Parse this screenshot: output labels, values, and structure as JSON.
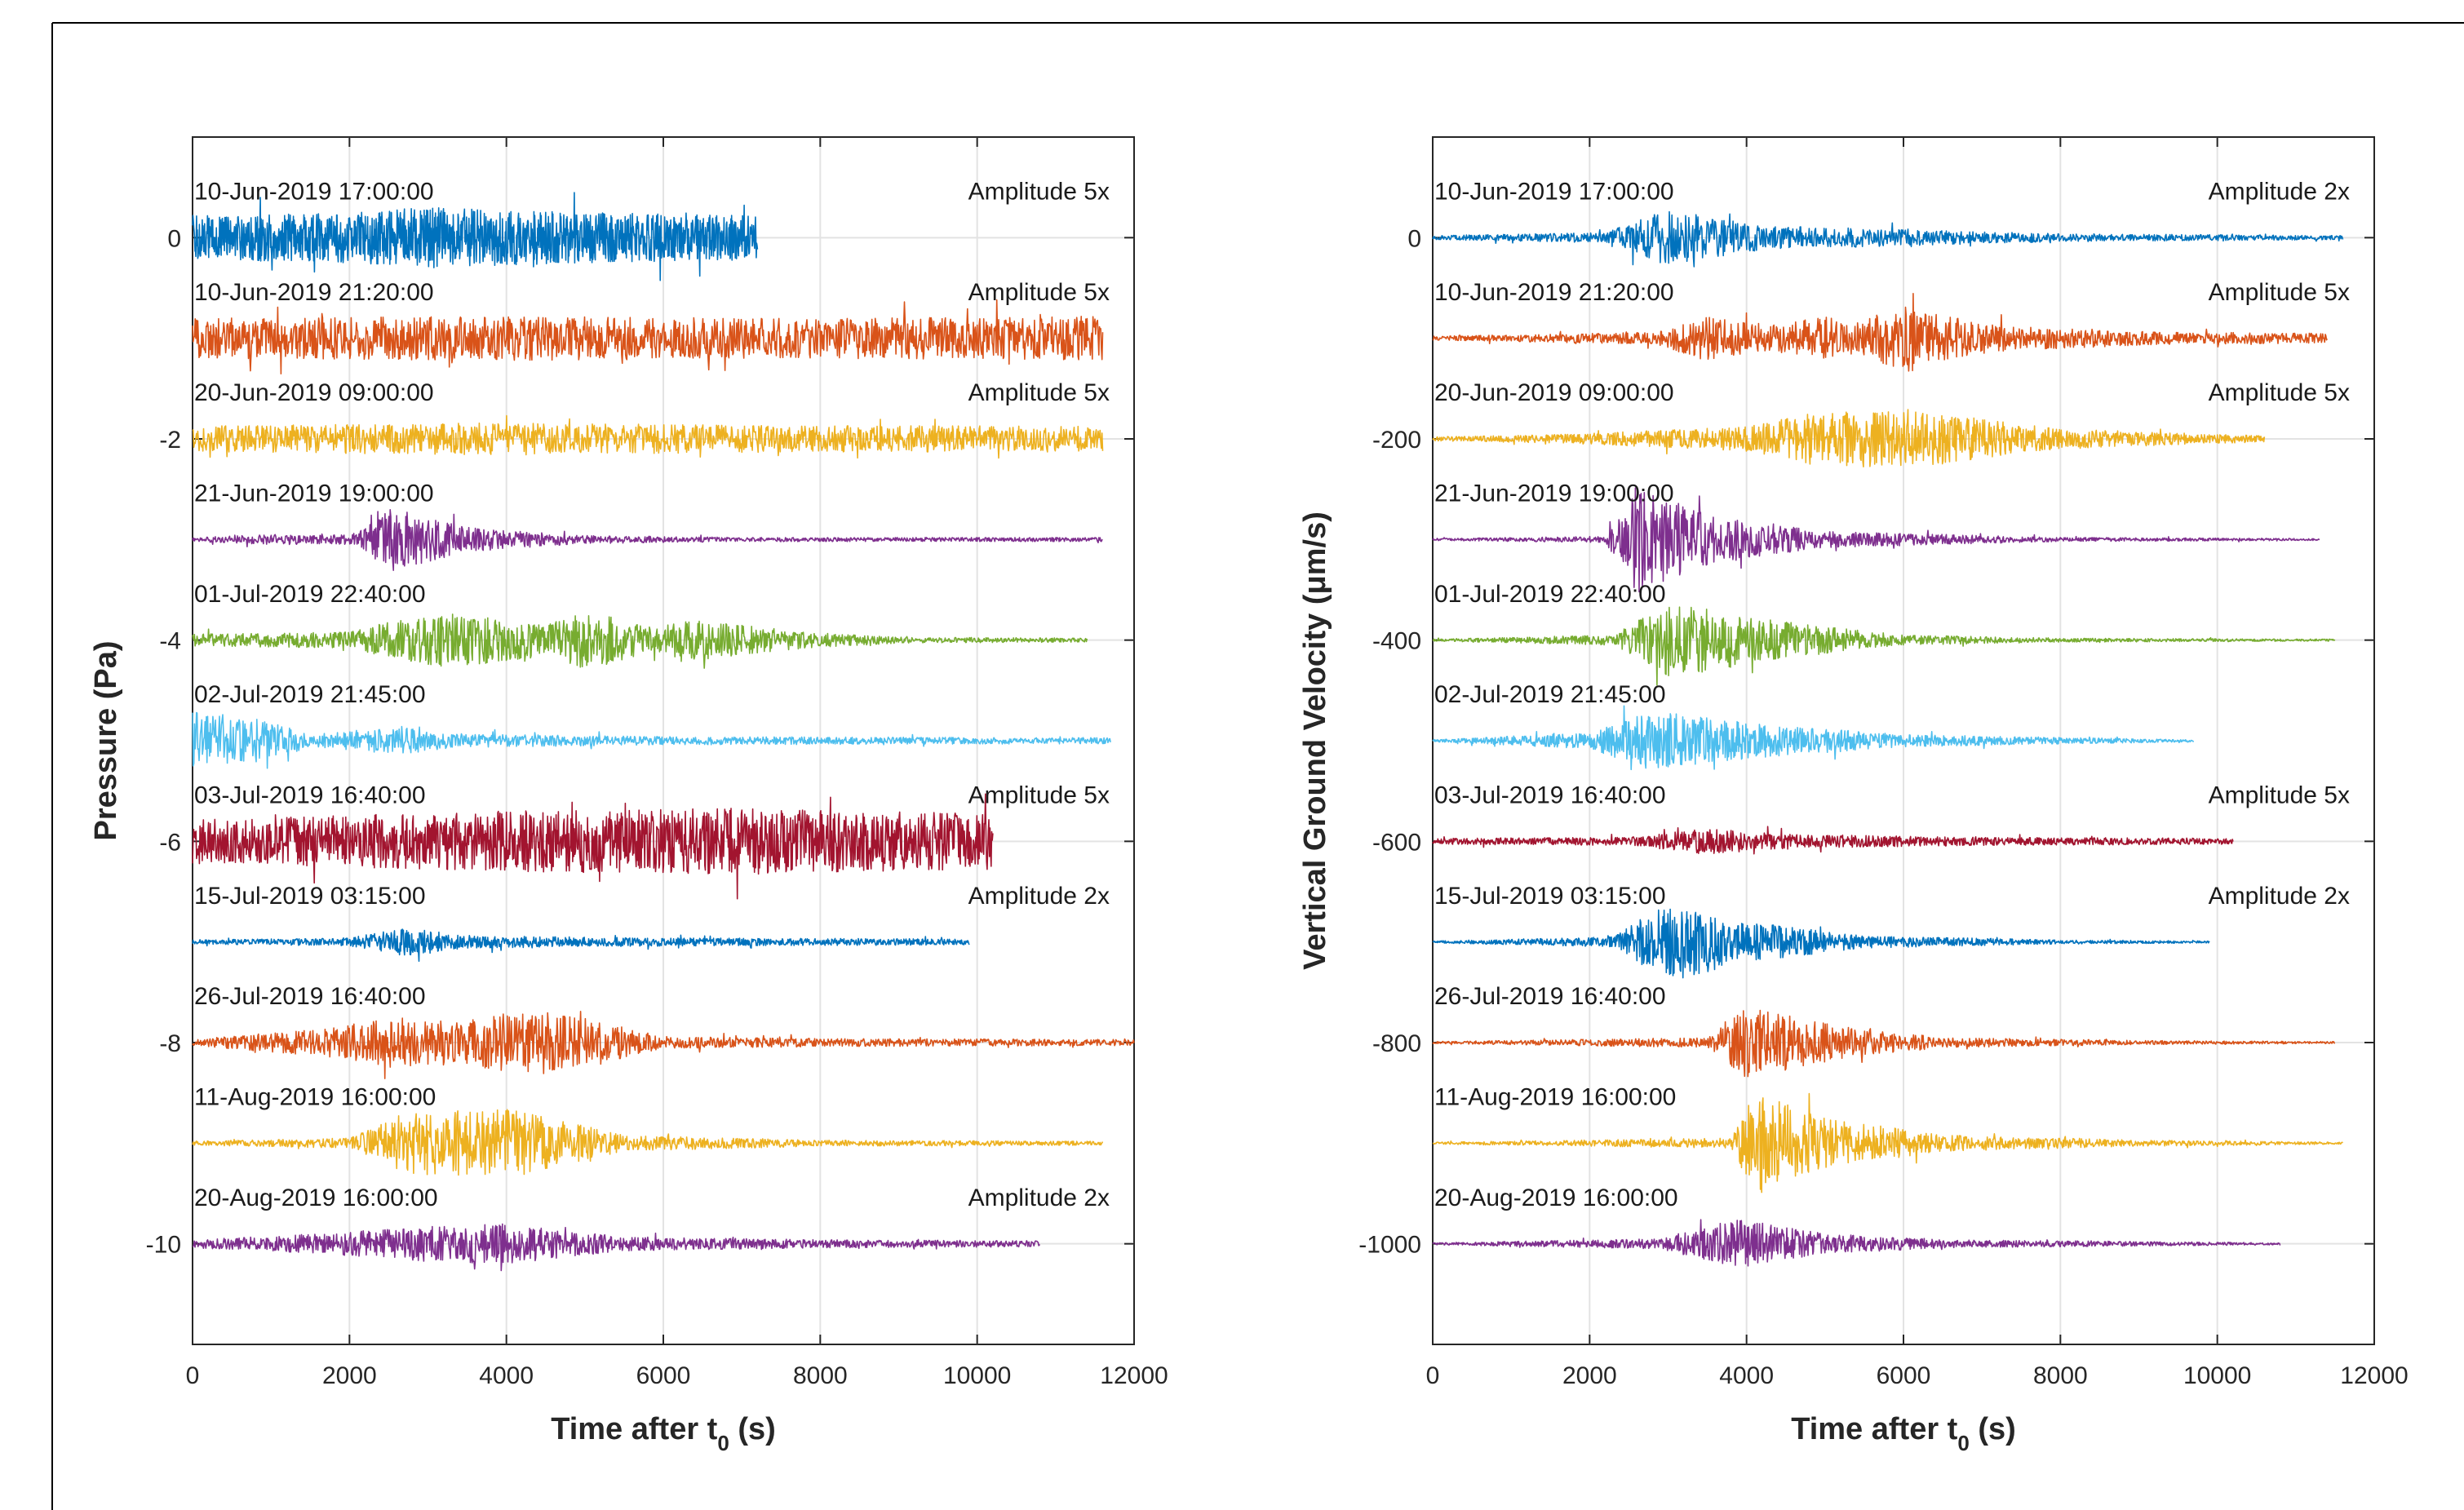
{
  "chart_data": [
    {
      "type": "line",
      "title": "",
      "xlabel": "Time after t",
      "xlabel_sub": "0",
      "xlabel_suffix": " (s)",
      "ylabel": "Pressure (Pa)",
      "xlim": [
        0,
        12000
      ],
      "ylim": [
        -11,
        1
      ],
      "xticks": [
        0,
        2000,
        4000,
        6000,
        8000,
        10000,
        12000
      ],
      "yticks": [
        0,
        -2,
        -4,
        -6,
        -8,
        -10
      ],
      "grid": true,
      "series": [
        {
          "name": "10-Jun-2019 17:00:00",
          "annotation": "Amplitude 5x",
          "offset": 0,
          "end": 7200,
          "color": "#0072bd",
          "envelope": [
            [
              0,
              0.22
            ],
            [
              2000,
              0.25
            ],
            [
              3000,
              0.3
            ],
            [
              5000,
              0.25
            ],
            [
              7200,
              0.22
            ]
          ]
        },
        {
          "name": "10-Jun-2019 21:20:00",
          "annotation": "Amplitude 5x",
          "offset": -1,
          "end": 11600,
          "color": "#d95319",
          "envelope": [
            [
              0,
              0.2
            ],
            [
              4000,
              0.22
            ],
            [
              8000,
              0.2
            ],
            [
              11600,
              0.22
            ]
          ]
        },
        {
          "name": "20-Jun-2019 09:00:00",
          "annotation": "Amplitude 5x",
          "offset": -2,
          "end": 11600,
          "color": "#edb120",
          "envelope": [
            [
              0,
              0.13
            ],
            [
              4000,
              0.16
            ],
            [
              8000,
              0.13
            ],
            [
              11600,
              0.13
            ]
          ]
        },
        {
          "name": "21-Jun-2019 19:00:00",
          "annotation": "",
          "offset": -3,
          "end": 11600,
          "color": "#7e2f8e",
          "envelope": [
            [
              0,
              0.02
            ],
            [
              1000,
              0.05
            ],
            [
              2100,
              0.06
            ],
            [
              2500,
              0.32
            ],
            [
              3500,
              0.12
            ],
            [
              5000,
              0.04
            ],
            [
              7000,
              0.02
            ],
            [
              11600,
              0.02
            ]
          ]
        },
        {
          "name": "01-Jul-2019 22:40:00",
          "annotation": "",
          "offset": -4,
          "end": 11400,
          "color": "#77ac30",
          "envelope": [
            [
              0,
              0.06
            ],
            [
              2000,
              0.08
            ],
            [
              2500,
              0.18
            ],
            [
              3300,
              0.28
            ],
            [
              4500,
              0.16
            ],
            [
              5000,
              0.3
            ],
            [
              6000,
              0.1
            ],
            [
              6200,
              0.22
            ],
            [
              7800,
              0.08
            ],
            [
              9000,
              0.03
            ],
            [
              11400,
              0.02
            ]
          ]
        },
        {
          "name": "02-Jul-2019 21:45:00",
          "annotation": "",
          "offset": -5,
          "end": 11700,
          "color": "#4dbeee",
          "envelope": [
            [
              0,
              0.3
            ],
            [
              900,
              0.22
            ],
            [
              1500,
              0.06
            ],
            [
              2600,
              0.14
            ],
            [
              3300,
              0.07
            ],
            [
              6000,
              0.04
            ],
            [
              11700,
              0.03
            ]
          ]
        },
        {
          "name": "03-Jul-2019 16:40:00",
          "annotation": "Amplitude 5x",
          "offset": -6,
          "end": 10200,
          "color": "#a2142f",
          "envelope": [
            [
              0,
              0.22
            ],
            [
              4000,
              0.3
            ],
            [
              7000,
              0.33
            ],
            [
              10200,
              0.28
            ]
          ]
        },
        {
          "name": "15-Jul-2019 03:15:00",
          "annotation": "Amplitude 2x",
          "offset": -7,
          "end": 9900,
          "color": "#0072bd",
          "envelope": [
            [
              0,
              0.02
            ],
            [
              2000,
              0.04
            ],
            [
              2700,
              0.14
            ],
            [
              3600,
              0.06
            ],
            [
              6000,
              0.04
            ],
            [
              9900,
              0.03
            ]
          ]
        },
        {
          "name": "26-Jul-2019 16:40:00",
          "annotation": "",
          "offset": -8,
          "end": 12000,
          "color": "#d95319",
          "envelope": [
            [
              0,
              0.03
            ],
            [
              1800,
              0.15
            ],
            [
              2500,
              0.25
            ],
            [
              3500,
              0.22
            ],
            [
              4400,
              0.35
            ],
            [
              6000,
              0.06
            ],
            [
              8000,
              0.04
            ],
            [
              12000,
              0.03
            ]
          ]
        },
        {
          "name": "11-Aug-2019 16:00:00",
          "annotation": "",
          "offset": -9,
          "end": 11600,
          "color": "#edb120",
          "envelope": [
            [
              0,
              0.02
            ],
            [
              2000,
              0.05
            ],
            [
              2700,
              0.3
            ],
            [
              4000,
              0.35
            ],
            [
              5500,
              0.08
            ],
            [
              8000,
              0.03
            ],
            [
              11600,
              0.02
            ]
          ]
        },
        {
          "name": "20-Aug-2019 16:00:00",
          "annotation": "Amplitude 2x",
          "offset": -10,
          "end": 10800,
          "color": "#7e2f8e",
          "envelope": [
            [
              0,
              0.04
            ],
            [
              1700,
              0.1
            ],
            [
              3000,
              0.18
            ],
            [
              4000,
              0.2
            ],
            [
              5500,
              0.07
            ],
            [
              8000,
              0.04
            ],
            [
              10800,
              0.03
            ]
          ]
        }
      ]
    },
    {
      "type": "line",
      "title": "",
      "xlabel": "Time after t",
      "xlabel_sub": "0",
      "xlabel_suffix": " (s)",
      "ylabel": "Vertical Ground Velocity (μm/s)",
      "xlim": [
        0,
        12000
      ],
      "ylim": [
        -1100,
        100
      ],
      "xticks": [
        0,
        2000,
        4000,
        6000,
        8000,
        10000,
        12000
      ],
      "yticks": [
        0,
        -200,
        -400,
        -600,
        -800,
        -1000
      ],
      "grid": true,
      "series": [
        {
          "name": "10-Jun-2019 17:00:00",
          "annotation": "Amplitude 2x",
          "offset": 0,
          "end": 11600,
          "color": "#0072bd",
          "envelope": [
            [
              0,
              0.02
            ],
            [
              2200,
              0.05
            ],
            [
              3000,
              0.28
            ],
            [
              4200,
              0.12
            ],
            [
              6000,
              0.08
            ],
            [
              8000,
              0.04
            ],
            [
              11600,
              0.02
            ]
          ]
        },
        {
          "name": "10-Jun-2019 21:20:00",
          "annotation": "Amplitude 5x",
          "offset": -100,
          "end": 11400,
          "color": "#d95319",
          "envelope": [
            [
              0,
              0.02
            ],
            [
              2800,
              0.06
            ],
            [
              3500,
              0.22
            ],
            [
              4200,
              0.12
            ],
            [
              5000,
              0.22
            ],
            [
              5400,
              0.15
            ],
            [
              6000,
              0.35
            ],
            [
              7000,
              0.14
            ],
            [
              8000,
              0.1
            ],
            [
              9500,
              0.06
            ],
            [
              11400,
              0.05
            ]
          ]
        },
        {
          "name": "20-Jun-2019 09:00:00",
          "annotation": "Amplitude 5x",
          "offset": -200,
          "end": 10600,
          "color": "#edb120",
          "envelope": [
            [
              0,
              0.02
            ],
            [
              1500,
              0.04
            ],
            [
              4000,
              0.12
            ],
            [
              4800,
              0.25
            ],
            [
              6000,
              0.3
            ],
            [
              8000,
              0.1
            ],
            [
              10600,
              0.03
            ]
          ]
        },
        {
          "name": "21-Jun-2019 19:00:00",
          "annotation": "",
          "offset": -300,
          "end": 11300,
          "color": "#7e2f8e",
          "envelope": [
            [
              0,
              0.01
            ],
            [
              2200,
              0.03
            ],
            [
              2600,
              0.55
            ],
            [
              3500,
              0.25
            ],
            [
              5000,
              0.08
            ],
            [
              8000,
              0.02
            ],
            [
              11300,
              0.01
            ]
          ]
        },
        {
          "name": "01-Jul-2019 22:40:00",
          "annotation": "",
          "offset": -400,
          "end": 11500,
          "color": "#77ac30",
          "envelope": [
            [
              0,
              0.01
            ],
            [
              2300,
              0.05
            ],
            [
              3000,
              0.38
            ],
            [
              4500,
              0.18
            ],
            [
              6000,
              0.05
            ],
            [
              8000,
              0.02
            ],
            [
              11500,
              0.01
            ]
          ]
        },
        {
          "name": "02-Jul-2019 21:45:00",
          "annotation": "",
          "offset": -500,
          "end": 9700,
          "color": "#4dbeee",
          "envelope": [
            [
              0,
              0.01
            ],
            [
              2000,
              0.08
            ],
            [
              2800,
              0.3
            ],
            [
              4000,
              0.18
            ],
            [
              6000,
              0.06
            ],
            [
              9700,
              0.01
            ]
          ]
        },
        {
          "name": "03-Jul-2019 16:40:00",
          "annotation": "Amplitude 5x",
          "offset": -600,
          "end": 10200,
          "color": "#a2142f",
          "envelope": [
            [
              0,
              0.03
            ],
            [
              2500,
              0.04
            ],
            [
              3500,
              0.13
            ],
            [
              4500,
              0.07
            ],
            [
              7000,
              0.04
            ],
            [
              10200,
              0.03
            ]
          ]
        },
        {
          "name": "15-Jul-2019 03:15:00",
          "annotation": "Amplitude 2x",
          "offset": -700,
          "end": 9900,
          "color": "#0072bd",
          "envelope": [
            [
              0,
              0.01
            ],
            [
              2300,
              0.05
            ],
            [
              3000,
              0.4
            ],
            [
              4000,
              0.2
            ],
            [
              5500,
              0.06
            ],
            [
              8000,
              0.02
            ],
            [
              9900,
              0.01
            ]
          ]
        },
        {
          "name": "26-Jul-2019 16:40:00",
          "annotation": "",
          "offset": -800,
          "end": 11500,
          "color": "#d95319",
          "envelope": [
            [
              0,
              0.01
            ],
            [
              3500,
              0.05
            ],
            [
              4000,
              0.35
            ],
            [
              5300,
              0.15
            ],
            [
              6500,
              0.05
            ],
            [
              9000,
              0.02
            ],
            [
              11500,
              0.01
            ]
          ]
        },
        {
          "name": "11-Aug-2019 16:00:00",
          "annotation": "",
          "offset": -900,
          "end": 11600,
          "color": "#edb120",
          "envelope": [
            [
              0,
              0.01
            ],
            [
              3800,
              0.05
            ],
            [
              4100,
              0.5
            ],
            [
              5000,
              0.25
            ],
            [
              6500,
              0.08
            ],
            [
              9000,
              0.03
            ],
            [
              11600,
              0.01
            ]
          ]
        },
        {
          "name": "20-Aug-2019 16:00:00",
          "annotation": "",
          "offset": -1000,
          "end": 10800,
          "color": "#7e2f8e",
          "envelope": [
            [
              0,
              0.01
            ],
            [
              2900,
              0.05
            ],
            [
              3900,
              0.25
            ],
            [
              5000,
              0.1
            ],
            [
              6500,
              0.04
            ],
            [
              10800,
              0.01
            ]
          ]
        }
      ]
    }
  ]
}
